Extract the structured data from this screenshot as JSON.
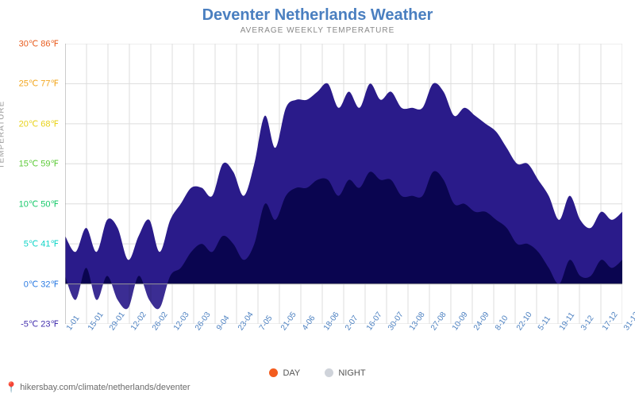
{
  "title": "Deventer Netherlands Weather",
  "subtitle": "AVERAGE WEEKLY TEMPERATURE",
  "y_axis_label": "TEMPERATURE",
  "footer_url": "hikersbay.com/climate/netherlands/deventer",
  "chart": {
    "type": "area",
    "background_color": "#ffffff",
    "grid_color": "#dddddd",
    "axis_color": "#999999",
    "title_fontsize": 20,
    "title_color": "#4a7fc0",
    "subtitle_fontsize": 10,
    "subtitle_color": "#888888",
    "xtick_color": "#4a7fc0",
    "xtick_fontsize": 10,
    "xtick_rotation": -55,
    "ylim": [
      -5,
      30
    ],
    "ytick_step": 5,
    "y_ticks": [
      {
        "c": 30,
        "f": 86,
        "color": "#e85d1f"
      },
      {
        "c": 25,
        "f": 77,
        "color": "#f2a61e"
      },
      {
        "c": 20,
        "f": 68,
        "color": "#e8d21a"
      },
      {
        "c": 15,
        "f": 59,
        "color": "#5ecb3a"
      },
      {
        "c": 10,
        "f": 50,
        "color": "#18c96b"
      },
      {
        "c": 5,
        "f": 41,
        "color": "#11d4c7"
      },
      {
        "c": 0,
        "f": 32,
        "color": "#2a7ae2"
      },
      {
        "c": -5,
        "f": 23,
        "color": "#4431ae"
      }
    ],
    "x_labels": [
      "1-01",
      "15-01",
      "29-01",
      "12-02",
      "26-02",
      "12-03",
      "26-03",
      "9-04",
      "23-04",
      "7-05",
      "21-05",
      "4-06",
      "18-06",
      "2-07",
      "16-07",
      "30-07",
      "13-08",
      "27-08",
      "10-09",
      "24-09",
      "8-10",
      "22-10",
      "5-11",
      "19-11",
      "3-12",
      "17-12",
      "31-12"
    ],
    "gradient_stops": [
      {
        "t": -5,
        "color": "#2a1b8a"
      },
      {
        "t": 0,
        "color": "#1f3fd6"
      },
      {
        "t": 4,
        "color": "#0bb8d9"
      },
      {
        "t": 8,
        "color": "#0fd67a"
      },
      {
        "t": 13,
        "color": "#57e22a"
      },
      {
        "t": 17,
        "color": "#d7e01a"
      },
      {
        "t": 20,
        "color": "#f5b514"
      },
      {
        "t": 23,
        "color": "#f47514"
      },
      {
        "t": 25,
        "color": "#ee3418"
      }
    ],
    "day_values": [
      6,
      4,
      7,
      4,
      8,
      7,
      3,
      6,
      8,
      4,
      8,
      10,
      12,
      12,
      11,
      15,
      14,
      11,
      15,
      21,
      17,
      22,
      23,
      23,
      24,
      25,
      22,
      24,
      22,
      25,
      23,
      24,
      22,
      22,
      22,
      25,
      24,
      21,
      22,
      21,
      20,
      19,
      17,
      15,
      15,
      13,
      11,
      8,
      11,
      8,
      7,
      9,
      8,
      9
    ],
    "night_values": [
      1,
      -2,
      2,
      -2,
      1,
      -2,
      -3,
      1,
      -2,
      -3,
      1,
      2,
      4,
      5,
      4,
      6,
      5,
      3,
      5,
      10,
      8,
      11,
      12,
      12,
      13,
      13,
      11,
      13,
      12,
      14,
      13,
      13,
      11,
      11,
      11,
      14,
      13,
      10,
      10,
      9,
      9,
      8,
      7,
      5,
      5,
      4,
      2,
      0,
      3,
      1,
      1,
      3,
      2,
      3
    ]
  },
  "legend": {
    "items": [
      {
        "label": "DAY",
        "color": "#f35c1e"
      },
      {
        "label": "NIGHT",
        "color": "#cfd3da"
      }
    ]
  }
}
